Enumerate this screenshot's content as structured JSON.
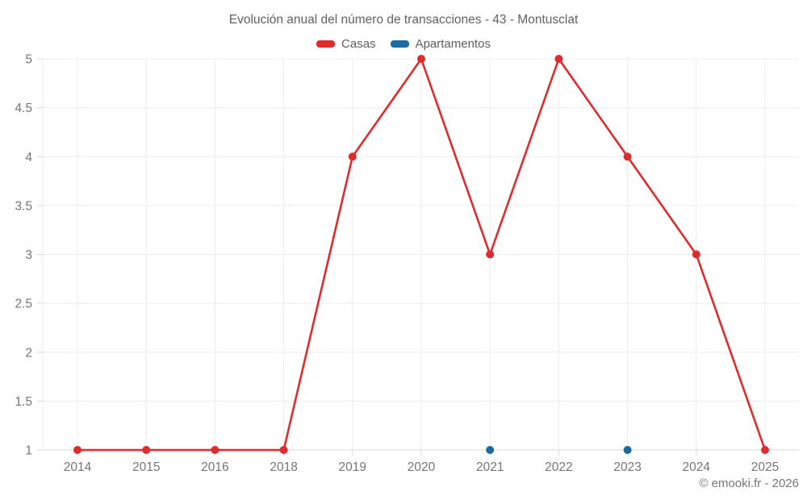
{
  "title": "Evolución anual del número de transacciones - 43 - Montusclat",
  "footer": {
    "text": "© emooki.fr - 2026"
  },
  "chart_data": {
    "type": "line",
    "title": "Evolución anual del número de transacciones - 43 - Montusclat",
    "x": [
      "2014",
      "2015",
      "2016",
      "2018",
      "2019",
      "2020",
      "2021",
      "2022",
      "2023",
      "2024",
      "2025"
    ],
    "series": [
      {
        "name": "Casas",
        "color": "#e02b2d",
        "values": [
          1,
          1,
          1,
          1,
          4,
          5,
          3,
          5,
          4,
          3,
          1
        ]
      },
      {
        "name": "Apartamentos",
        "color": "#1a6ba1",
        "values": [
          null,
          null,
          null,
          null,
          null,
          null,
          1,
          null,
          1,
          null,
          null
        ]
      }
    ],
    "xlabel": "",
    "ylabel": "",
    "ylim": [
      1,
      5
    ],
    "yticks": [
      1,
      1.5,
      2,
      2.5,
      3,
      3.5,
      4,
      4.5,
      5
    ],
    "grid": true,
    "legend_position": "top",
    "marker_radius": 5
  }
}
